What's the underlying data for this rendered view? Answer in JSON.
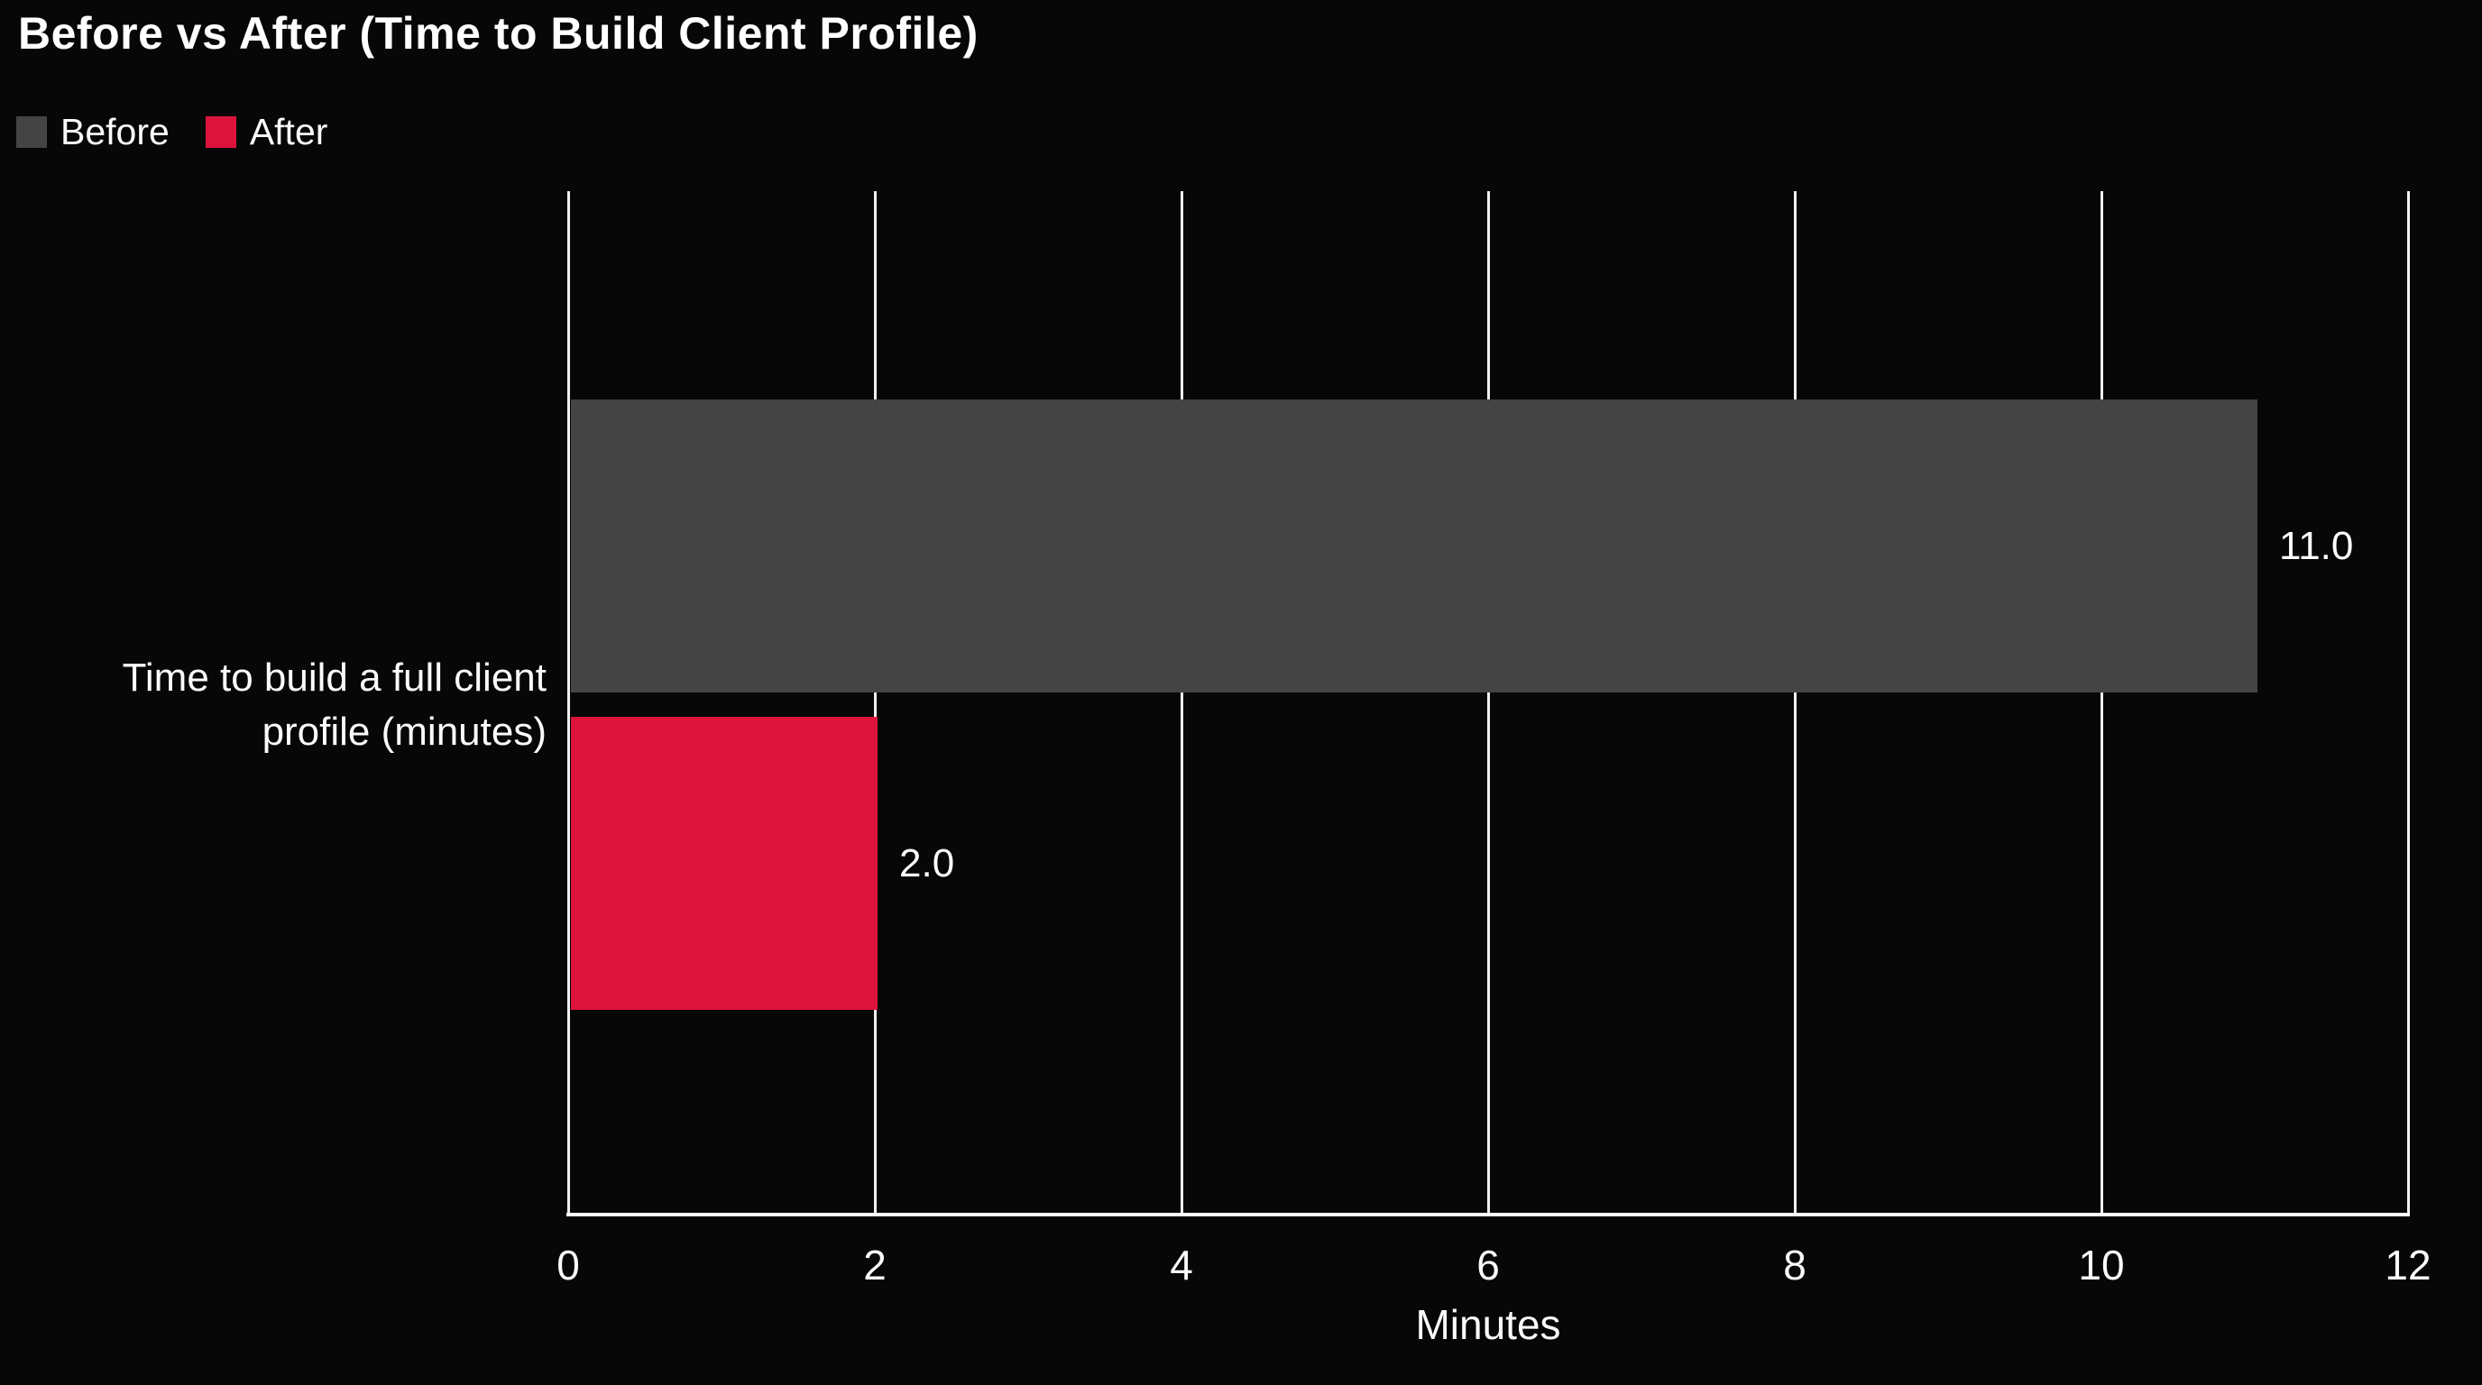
{
  "title": "Before vs After (Time to Build Client Profile)",
  "colors": {
    "background": "#070707",
    "before": "#444444",
    "after": "#dc143c",
    "text": "#fafafa",
    "gridline": "#f0f0f0",
    "axis": "#ffffff"
  },
  "legend": {
    "items": [
      {
        "label": "Before",
        "color": "#444444"
      },
      {
        "label": "After",
        "color": "#dc143c"
      }
    ]
  },
  "category_label_lines": [
    "Time to build a full client",
    "profile (minutes)"
  ],
  "chart_data": {
    "type": "bar",
    "orientation": "horizontal",
    "title": "Before vs After (Time to Build Client Profile)",
    "categories": [
      "Time to build a full client profile (minutes)"
    ],
    "series": [
      {
        "name": "Before",
        "color": "#444444",
        "values": [
          11.0
        ]
      },
      {
        "name": "After",
        "color": "#dc143c",
        "values": [
          2.0
        ]
      }
    ],
    "value_labels": {
      "before": "11.0",
      "after": "2.0"
    },
    "xlabel": "Minutes",
    "xlim": [
      0,
      12
    ],
    "xticks": [
      0,
      2,
      4,
      6,
      8,
      10,
      12
    ],
    "grid": true,
    "gridlines_vertical": true,
    "legend_position": "top-left",
    "background": "black"
  }
}
